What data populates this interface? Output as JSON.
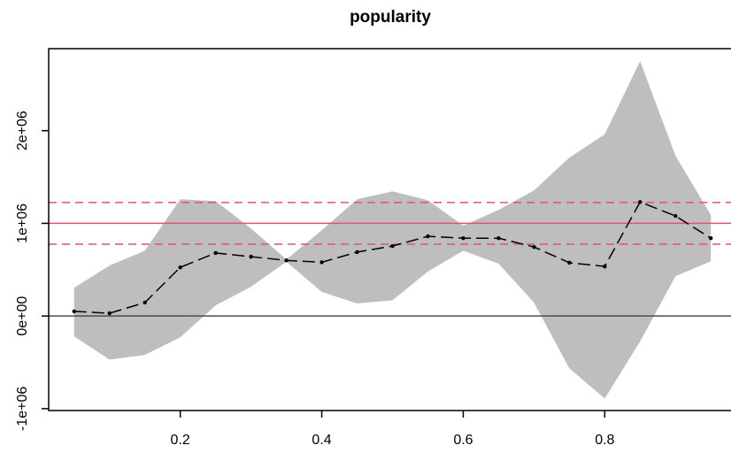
{
  "chart_data": {
    "type": "band-line",
    "title": "popularity",
    "x": [
      0.05,
      0.1,
      0.15,
      0.2,
      0.25,
      0.3,
      0.35,
      0.4,
      0.45,
      0.5,
      0.55,
      0.6,
      0.65,
      0.7,
      0.75,
      0.8,
      0.85,
      0.9,
      0.95
    ],
    "values": [
      50000,
      30000,
      145000,
      525000,
      680000,
      640000,
      600000,
      580000,
      690000,
      755000,
      860000,
      840000,
      840000,
      745000,
      575000,
      535000,
      1230000,
      1080000,
      840000
    ],
    "upper": [
      305000,
      545000,
      705000,
      1260000,
      1240000,
      945000,
      610000,
      925000,
      1260000,
      1345000,
      1250000,
      975000,
      1145000,
      1355000,
      1710000,
      1960000,
      2750000,
      1730000,
      1090000
    ],
    "lower": [
      -220000,
      -470000,
      -420000,
      -230000,
      115000,
      315000,
      585000,
      260000,
      135000,
      170000,
      480000,
      705000,
      565000,
      145000,
      -565000,
      -890000,
      -275000,
      430000,
      590000
    ],
    "color": "#000000",
    "band_color": "#bebebe",
    "reference_lines": [
      {
        "value": 0,
        "color": "#4d4d4d",
        "dashed": false
      },
      {
        "value": 1000000,
        "color": "#df536b",
        "dashed": false
      },
      {
        "value": 1225000,
        "color": "#df536b",
        "dashed": true
      },
      {
        "value": 775000,
        "color": "#df536b",
        "dashed": true
      }
    ],
    "xlim": [
      0.014,
      0.986
    ],
    "xticks": [
      0.2,
      0.4,
      0.6,
      0.8
    ],
    "ylim": [
      -1020000,
      2885000
    ],
    "yticks": [
      {
        "value": -1000000,
        "label": "-1e+06"
      },
      {
        "value": 0,
        "label": "0e+00"
      },
      {
        "value": 1000000,
        "label": "1e+06"
      },
      {
        "value": 2000000,
        "label": "2e+06"
      }
    ]
  }
}
